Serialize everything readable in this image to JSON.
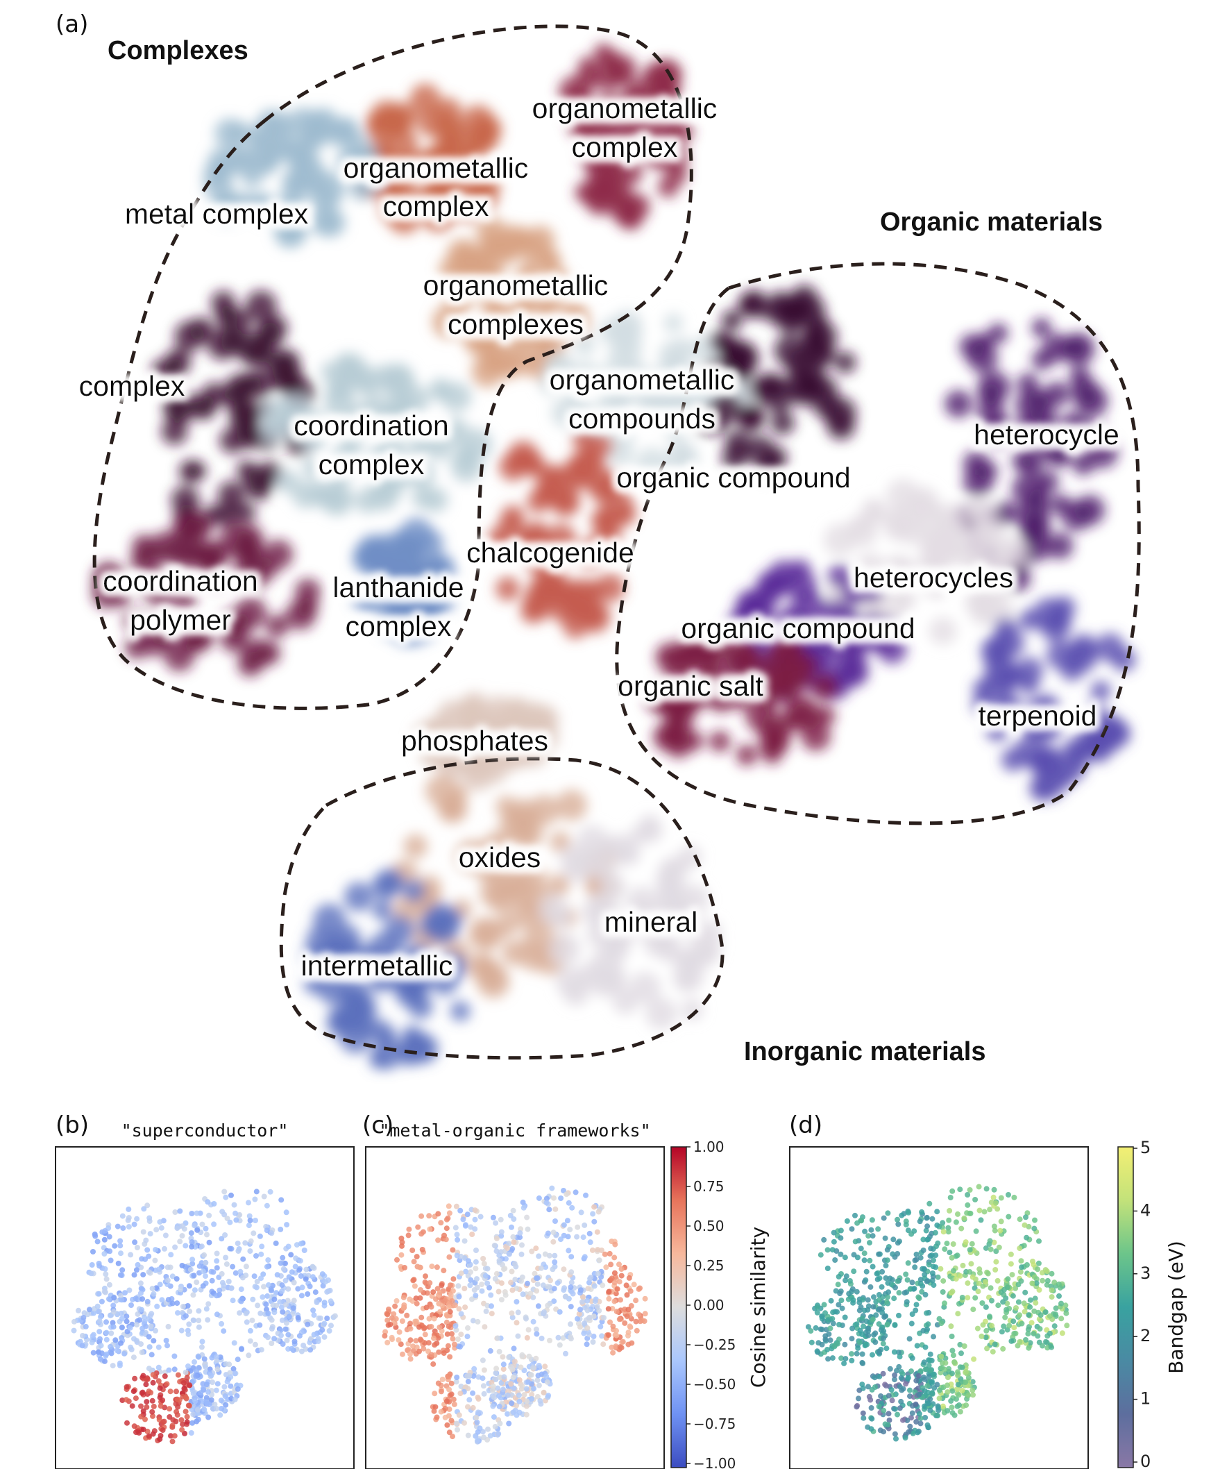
{
  "panel_tags": {
    "a": "(a)",
    "b": "(b)",
    "c": "(c)",
    "d": "(d)"
  },
  "group_labels": {
    "complexes": "Complexes",
    "organic": "Organic materials",
    "inorganic": "Inorganic materials"
  },
  "cluster_labels": {
    "om1": [
      "organometallic",
      "complex"
    ],
    "om2": [
      "organometallic",
      "complex"
    ],
    "metal_complex": [
      "metal complex"
    ],
    "om_complexes": [
      "organometallic",
      "complexes"
    ],
    "om_compounds": [
      "organometallic",
      "compounds"
    ],
    "complex": [
      "complex"
    ],
    "coord_complex": [
      "coordination",
      "complex"
    ],
    "organic_compound_1": [
      "organic compound"
    ],
    "heterocycle": [
      "heterocycle"
    ],
    "chalcogenide": [
      "chalcogenide"
    ],
    "heterocycles": [
      "heterocycles"
    ],
    "coord_polymer": [
      "coordination",
      "polymer"
    ],
    "lanthanide": [
      "lanthanide",
      "complex"
    ],
    "organic_compound_2": [
      "organic compound"
    ],
    "organic_salt": [
      "organic salt"
    ],
    "terpenoid": [
      "terpenoid"
    ],
    "phosphates": [
      "phosphates"
    ],
    "oxides": [
      "oxides"
    ],
    "mineral": [
      "mineral"
    ],
    "intermetallic": [
      "intermetallic"
    ]
  },
  "panel_titles": {
    "b": "\"superconductor\"",
    "c": "\"metal-organic frameworks\""
  },
  "colorbars": {
    "cosine": {
      "label": "Cosine similarity",
      "ticks": [
        "1.00",
        "0.75",
        "0.50",
        "0.25",
        "0.00",
        "−0.25",
        "−0.50",
        "−0.75",
        "−1.00"
      ],
      "range": [
        -1.0,
        1.0
      ],
      "colormap": "coolwarm",
      "colors": [
        "#3b4cc0",
        "#6f92f3",
        "#aac7fd",
        "#dddddd",
        "#f7b89c",
        "#e7745b",
        "#b40426"
      ]
    },
    "bandgap": {
      "label": "Bandgap (eV)",
      "ticks": [
        "5",
        "4",
        "3",
        "2",
        "1",
        "0"
      ],
      "range": [
        0,
        5
      ],
      "colormap": "viridis",
      "colors": [
        "#8a78a6",
        "#5d6e9e",
        "#4a8aa3",
        "#39a2a0",
        "#6cc58a",
        "#c3e27a",
        "#f3ef74"
      ]
    }
  },
  "chart_data": [
    {
      "type": "scatter",
      "panel": "(a)",
      "title": "",
      "xlabel": "",
      "ylabel": "",
      "grid": false,
      "categories": [
        "organometallic complex",
        "organometallic complex",
        "metal complex",
        "organometallic complexes",
        "organometallic compounds",
        "complex",
        "coordination complex",
        "organic compound",
        "heterocycle",
        "chalcogenide",
        "heterocycles",
        "coordination polymer",
        "lanthanide complex",
        "organic compound",
        "organic salt",
        "terpenoid",
        "phosphates",
        "oxides",
        "mineral",
        "intermetallic"
      ],
      "category_colors": [
        "#8e2a4a",
        "#c8664a",
        "#9fbbd0",
        "#d8a383",
        "#d2dde2",
        "#3d1332",
        "#b8ccd4",
        "#3a1232",
        "#4d1a6a",
        "#c45a4e",
        "#e4dde4",
        "#6d1a44",
        "#6f8fc6",
        "#5a2c9a",
        "#7c1c44",
        "#5a4fb0",
        "#ddc7bd",
        "#d8ae97",
        "#e0dbe2",
        "#5a6fbd"
      ],
      "groups": [
        "Complexes",
        "Organic materials",
        "Inorganic materials"
      ]
    },
    {
      "type": "scatter",
      "panel": "(b)",
      "title": "\"superconductor\"",
      "colorbar": "Cosine similarity",
      "ylim": [
        -1.0,
        1.0
      ]
    },
    {
      "type": "scatter",
      "panel": "(c)",
      "title": "\"metal-organic frameworks\"",
      "colorbar": "Cosine similarity",
      "ylim": [
        -1.0,
        1.0
      ]
    },
    {
      "type": "scatter",
      "panel": "(d)",
      "title": "",
      "colorbar": "Bandgap (eV)",
      "ylim": [
        0,
        5
      ]
    }
  ]
}
